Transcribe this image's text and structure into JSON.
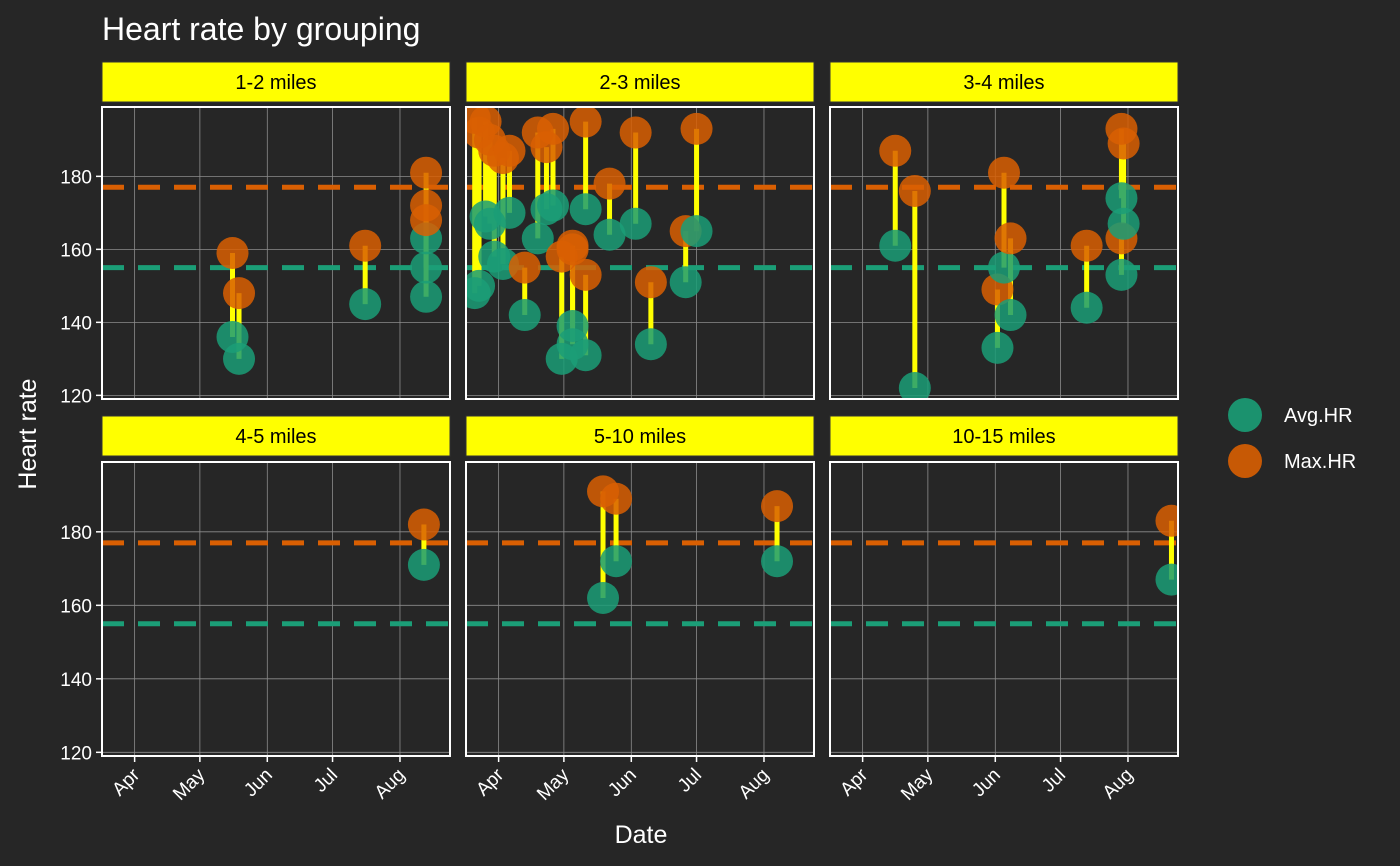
{
  "chart_data": {
    "type": "scatter",
    "title": "Heart rate by grouping",
    "xlabel": "Date",
    "ylabel": "Heart rate",
    "x_ticks": [
      "Apr",
      "May",
      "Jun",
      "Jul",
      "Aug"
    ],
    "x_tick_dates": [
      "2023-04-01",
      "2023-05-01",
      "2023-06-01",
      "2023-07-01",
      "2023-08-01"
    ],
    "xlim": [
      "2023-03-17",
      "2023-08-24"
    ],
    "y_ticks": [
      120,
      140,
      160,
      180
    ],
    "ylim": [
      119,
      199
    ],
    "grid": true,
    "facet_layout": "2 rows x 3 columns",
    "legend_position": "right",
    "colors": {
      "avg": "#1b9e77",
      "max": "#d95f02",
      "segment": "#ffff00",
      "strip": "#ffff00",
      "background": "#262626",
      "panel_border": "#ffffff",
      "grid": "#8c8c8c"
    },
    "series": [
      {
        "name": "Avg.HR",
        "color": "#1b9e77"
      },
      {
        "name": "Max.HR",
        "color": "#d95f02"
      }
    ],
    "reference_lines": [
      {
        "series": "Avg.HR",
        "y": 155,
        "style": "dashed"
      },
      {
        "series": "Max.HR",
        "y": 177,
        "style": "dashed"
      }
    ],
    "facets": [
      {
        "label": "1-2 miles",
        "points": [
          {
            "date": "2023-05-16",
            "avg": 136,
            "max": 159
          },
          {
            "date": "2023-05-19",
            "avg": 130,
            "max": 148
          },
          {
            "date": "2023-07-16",
            "avg": 145,
            "max": 161
          },
          {
            "date": "2023-08-13",
            "avg": 163,
            "max": 181
          },
          {
            "date": "2023-08-13",
            "avg": 155,
            "max": 172
          },
          {
            "date": "2023-08-13",
            "avg": 147,
            "max": 168
          }
        ]
      },
      {
        "label": "2-3 miles",
        "points": [
          {
            "date": "2023-03-21",
            "avg": 148,
            "max": 196
          },
          {
            "date": "2023-03-23",
            "avg": 150,
            "max": 192
          },
          {
            "date": "2023-03-26",
            "avg": 169,
            "max": 195
          },
          {
            "date": "2023-03-28",
            "avg": 167,
            "max": 190
          },
          {
            "date": "2023-03-30",
            "avg": 158,
            "max": 187
          },
          {
            "date": "2023-04-03",
            "avg": 156,
            "max": 185
          },
          {
            "date": "2023-04-06",
            "avg": 170,
            "max": 187
          },
          {
            "date": "2023-04-13",
            "avg": 142,
            "max": 155
          },
          {
            "date": "2023-04-19",
            "avg": 163,
            "max": 192
          },
          {
            "date": "2023-04-23",
            "avg": 171,
            "max": 188
          },
          {
            "date": "2023-04-26",
            "avg": 172,
            "max": 193
          },
          {
            "date": "2023-04-30",
            "avg": 130,
            "max": 158
          },
          {
            "date": "2023-05-05",
            "avg": 139,
            "max": 160
          },
          {
            "date": "2023-05-05",
            "avg": 134,
            "max": 161
          },
          {
            "date": "2023-05-11",
            "avg": 131,
            "max": 153
          },
          {
            "date": "2023-05-11",
            "avg": 171,
            "max": 195
          },
          {
            "date": "2023-05-22",
            "avg": 164,
            "max": 178
          },
          {
            "date": "2023-06-03",
            "avg": 167,
            "max": 192
          },
          {
            "date": "2023-06-10",
            "avg": 134,
            "max": 151
          },
          {
            "date": "2023-06-26",
            "avg": 151,
            "max": 165
          },
          {
            "date": "2023-07-01",
            "avg": 165,
            "max": 193
          }
        ]
      },
      {
        "label": "3-4 miles",
        "points": [
          {
            "date": "2023-04-16",
            "avg": 161,
            "max": 187
          },
          {
            "date": "2023-04-25",
            "avg": 122,
            "max": 176
          },
          {
            "date": "2023-06-02",
            "avg": 133,
            "max": 149
          },
          {
            "date": "2023-06-05",
            "avg": 155,
            "max": 181
          },
          {
            "date": "2023-06-08",
            "avg": 142,
            "max": 163
          },
          {
            "date": "2023-07-13",
            "avg": 144,
            "max": 161
          },
          {
            "date": "2023-07-29",
            "avg": 153,
            "max": 163
          },
          {
            "date": "2023-07-29",
            "avg": 174,
            "max": 193
          },
          {
            "date": "2023-07-30",
            "avg": 167,
            "max": 189
          }
        ]
      },
      {
        "label": "4-5 miles",
        "points": [
          {
            "date": "2023-08-12",
            "avg": 171,
            "max": 182
          }
        ]
      },
      {
        "label": "5-10 miles",
        "points": [
          {
            "date": "2023-05-19",
            "avg": 162,
            "max": 191
          },
          {
            "date": "2023-05-25",
            "avg": 172,
            "max": 189
          },
          {
            "date": "2023-08-07",
            "avg": 172,
            "max": 187
          }
        ]
      },
      {
        "label": "10-15 miles",
        "points": [
          {
            "date": "2023-08-21",
            "avg": 167,
            "max": 183
          }
        ]
      }
    ]
  }
}
